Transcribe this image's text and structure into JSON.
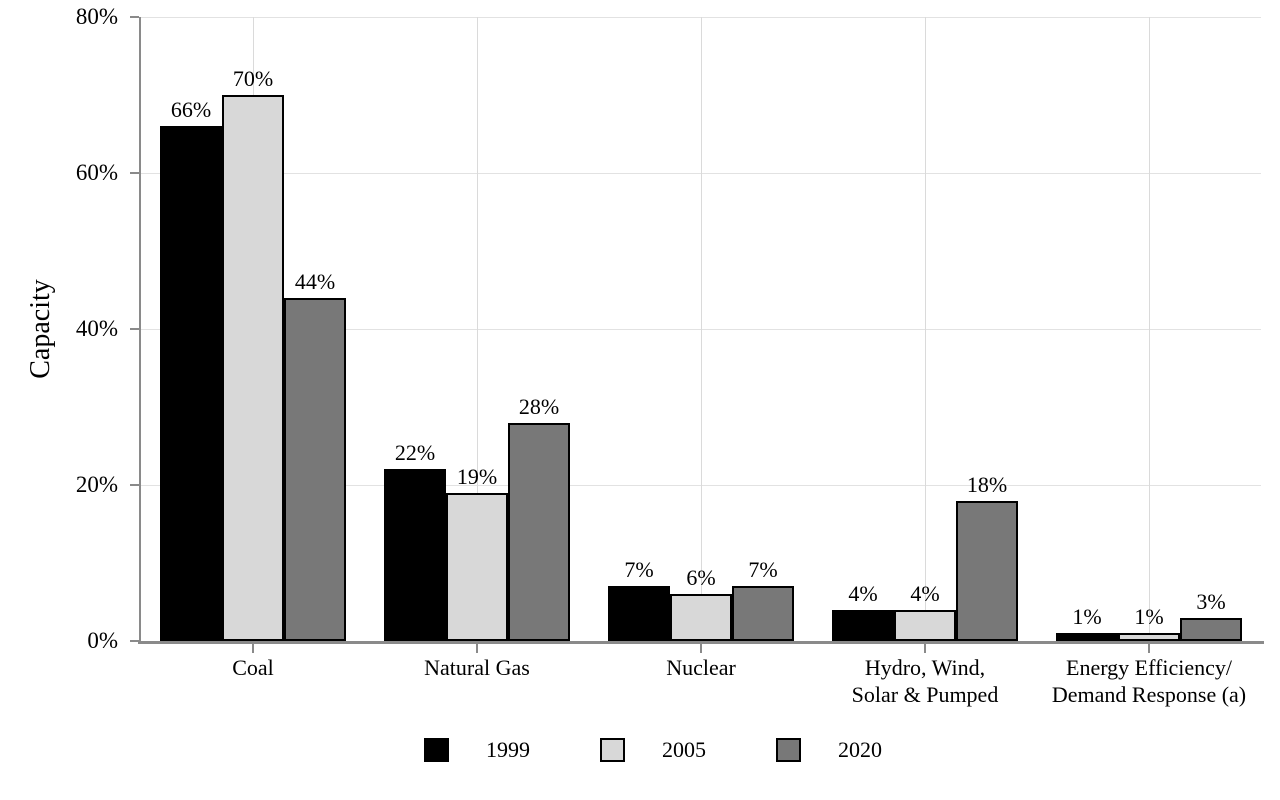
{
  "chart_data": {
    "type": "bar",
    "title": "",
    "xlabel": "",
    "ylabel": "Capacity",
    "ylim": [
      0,
      80
    ],
    "yticks": [
      {
        "value": 0,
        "label": "0%"
      },
      {
        "value": 20,
        "label": "20%"
      },
      {
        "value": 40,
        "label": "40%"
      },
      {
        "value": 60,
        "label": "60%"
      },
      {
        "value": 80,
        "label": "80%"
      }
    ],
    "grid": true,
    "legend_position": "bottom",
    "categories": [
      {
        "lines": [
          "Coal"
        ]
      },
      {
        "lines": [
          "Natural Gas"
        ]
      },
      {
        "lines": [
          "Nuclear"
        ]
      },
      {
        "lines": [
          "Hydro, Wind,",
          "Solar & Pumped"
        ]
      },
      {
        "lines": [
          "Energy Efficiency/",
          "Demand Response (a)"
        ]
      }
    ],
    "series": [
      {
        "name": "1999",
        "color": "#000000",
        "values": [
          66,
          22,
          7,
          4,
          1
        ],
        "labels": [
          "66%",
          "22%",
          "7%",
          "4%",
          "1%"
        ]
      },
      {
        "name": "2005",
        "color": "#d8d8d8",
        "values": [
          70,
          19,
          6,
          4,
          1
        ],
        "labels": [
          "70%",
          "19%",
          "6%",
          "4%",
          "1%"
        ]
      },
      {
        "name": "2020",
        "color": "#787878",
        "values": [
          44,
          28,
          7,
          18,
          3
        ],
        "labels": [
          "44%",
          "28%",
          "7%",
          "18%",
          "3%"
        ]
      }
    ],
    "bar_stroke_color": "#000000"
  }
}
